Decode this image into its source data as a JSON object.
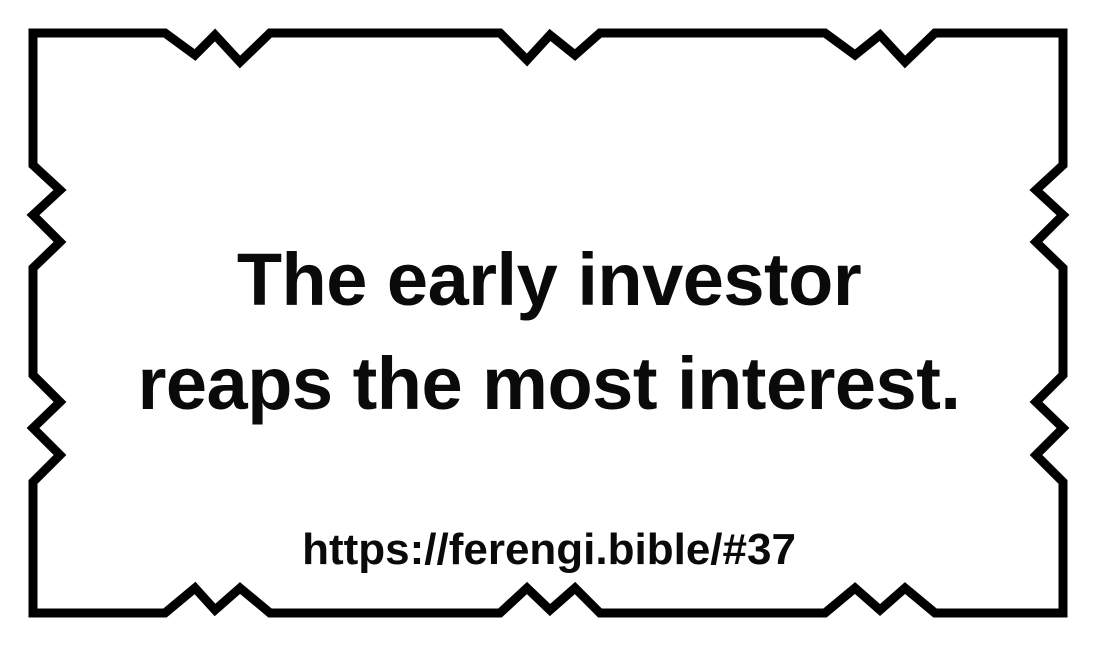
{
  "quote": {
    "line1": "The early investor",
    "line2": "reaps the most interest."
  },
  "source_url": "https://ferengi.bible/#37",
  "colors": {
    "background": "#ffffff",
    "border": "#000000",
    "text": "#0a0a0a"
  }
}
